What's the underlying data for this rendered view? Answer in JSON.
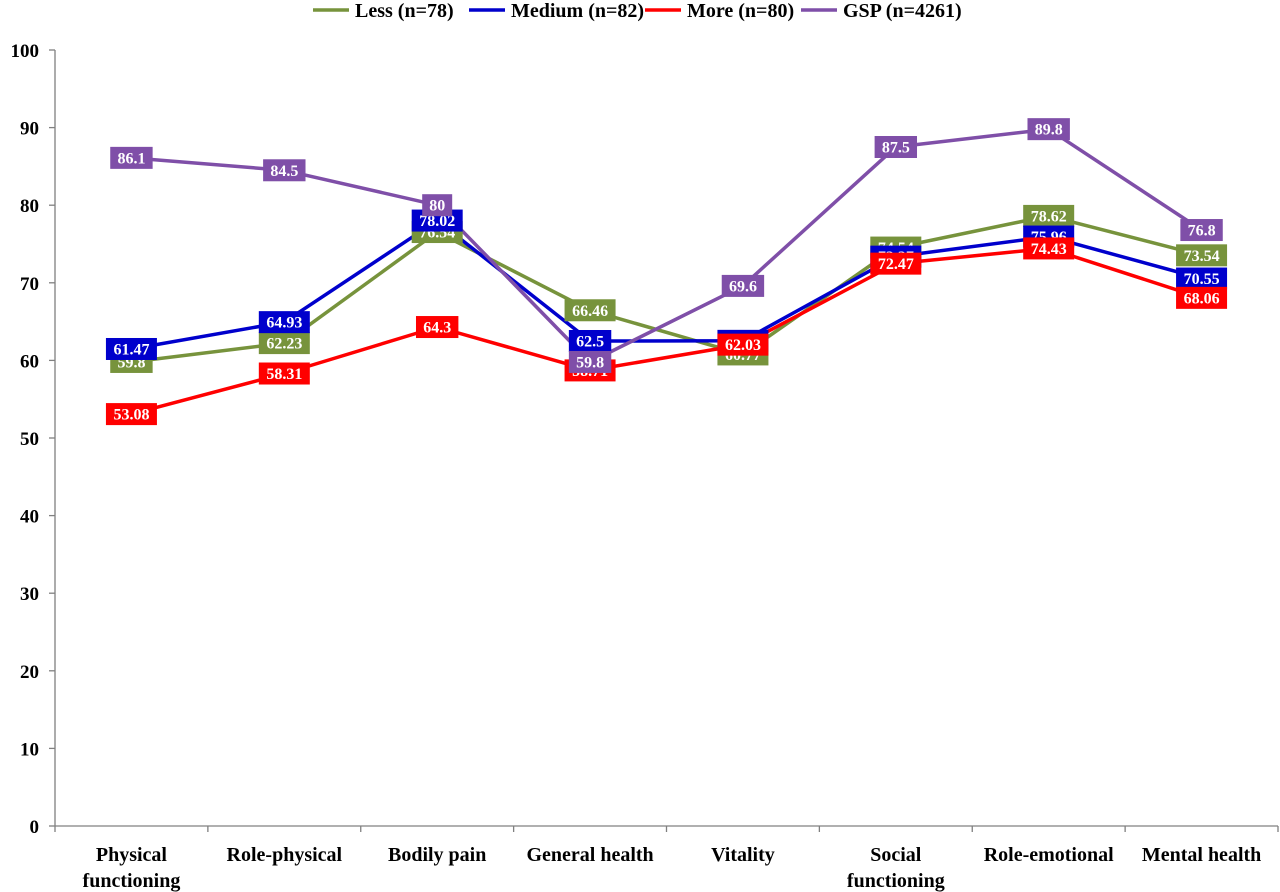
{
  "chart_data": {
    "type": "line",
    "title": "",
    "xlabel": "",
    "ylabel": "",
    "ylim": [
      0,
      100
    ],
    "yticks": [
      0,
      10,
      20,
      30,
      40,
      50,
      60,
      70,
      80,
      90,
      100
    ],
    "grid": false,
    "legend_position": "top",
    "categories": [
      "Physical functioning",
      "Role-physical",
      "Bodily pain",
      "General health",
      "Vitality",
      "Social functioning",
      "Role-emotional",
      "Mental health"
    ],
    "category_lines": [
      [
        "Physical",
        "functioning"
      ],
      [
        "Role-physical"
      ],
      [
        "Bodily pain"
      ],
      [
        "General health"
      ],
      [
        "Vitality"
      ],
      [
        "Social",
        "functioning"
      ],
      [
        "Role-emotional"
      ],
      [
        "Mental health"
      ]
    ],
    "series": [
      {
        "name": "Less (n=78)",
        "color": "#77933c",
        "values": [
          59.8,
          62.23,
          76.54,
          66.46,
          60.77,
          74.54,
          78.62,
          73.54
        ],
        "labels": [
          "59.8",
          "62.23",
          "76.54",
          "66.46",
          "60.77",
          "74.54",
          "78.62",
          "73.54"
        ]
      },
      {
        "name": "Medium (n=82)",
        "color": "#0000cc",
        "values": [
          61.47,
          64.93,
          78.02,
          62.5,
          62.52,
          73.37,
          75.96,
          70.55
        ],
        "labels": [
          "61.47",
          "64.93",
          "78.02",
          "62.5",
          "62.52",
          "73.37",
          "75.96",
          "70.55"
        ]
      },
      {
        "name": "More (n=80)",
        "color": "#ff0000",
        "values": [
          53.08,
          58.31,
          64.3,
          58.71,
          62.03,
          72.47,
          74.43,
          68.06
        ],
        "labels": [
          "53.08",
          "58.31",
          "64.3",
          "58.71",
          "62.03",
          "72.47",
          "74.43",
          "68.06"
        ]
      },
      {
        "name": "GSP (n=4261)",
        "color": "#7f4fa8",
        "values": [
          86.1,
          84.5,
          80,
          59.8,
          69.6,
          87.5,
          89.8,
          76.8
        ],
        "labels": [
          "86.1",
          "84.5",
          "80",
          "59.8",
          "69.6",
          "87.5",
          "89.8",
          "76.8"
        ]
      }
    ]
  }
}
